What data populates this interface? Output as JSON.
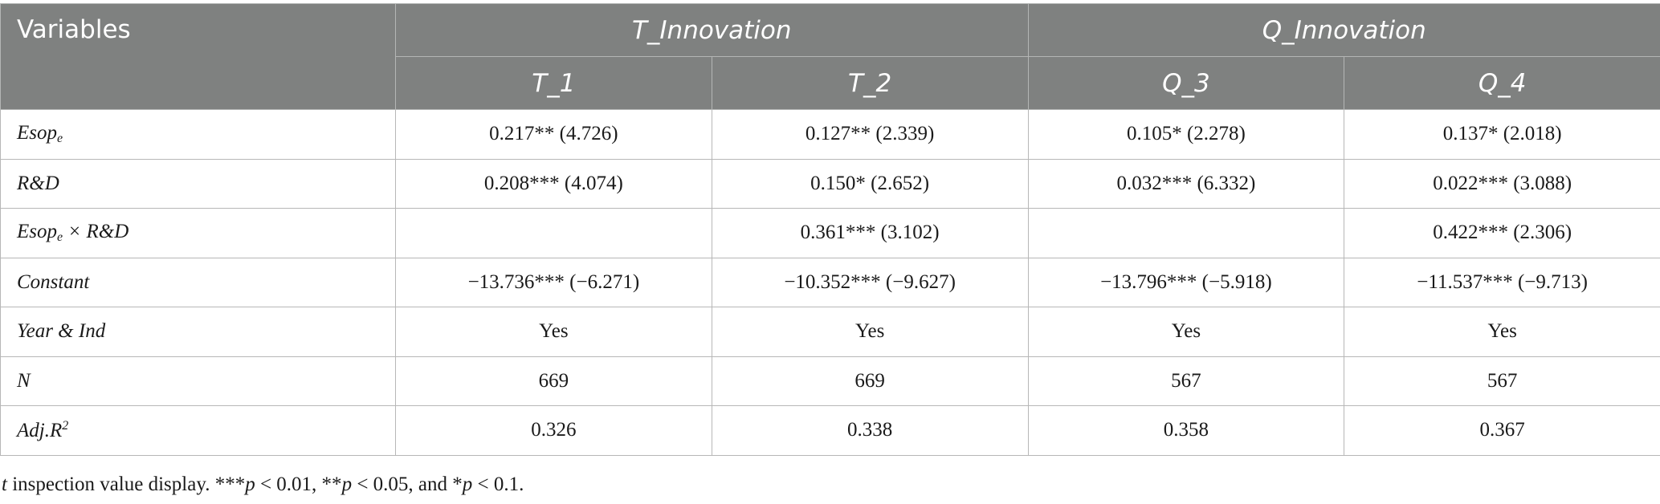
{
  "table": {
    "header": {
      "variables": "Variables",
      "groups": [
        "T_Innovation",
        "Q_Innovation"
      ],
      "columns": [
        "T_1",
        "T_2",
        "Q_3",
        "Q_4"
      ]
    },
    "rows": [
      {
        "label_main": "Esop",
        "label_sub": "e",
        "label_rest": "",
        "cells": [
          "0.217** (4.726)",
          "0.127** (2.339)",
          "0.105* (2.278)",
          "0.137* (2.018)"
        ]
      },
      {
        "label_main": "R&D",
        "label_sub": "",
        "label_rest": "",
        "cells": [
          "0.208*** (4.074)",
          "0.150* (2.652)",
          "0.032*** (6.332)",
          "0.022*** (3.088)"
        ]
      },
      {
        "label_main": "Esop",
        "label_sub": "e",
        "label_rest": " × R&D",
        "cells": [
          "",
          "0.361*** (3.102)",
          "",
          "0.422*** (2.306)"
        ]
      },
      {
        "label_main": "Constant",
        "label_sub": "",
        "label_rest": "",
        "cells": [
          "−13.736*** (−6.271)",
          "−10.352*** (−9.627)",
          "−13.796*** (−5.918)",
          "−11.537*** (−9.713)"
        ]
      },
      {
        "label_main": "Year & Ind",
        "label_sub": "",
        "label_rest": "",
        "cells": [
          "Yes",
          "Yes",
          "Yes",
          "Yes"
        ]
      },
      {
        "label_main": "N",
        "label_sub": "",
        "label_rest": "",
        "cells": [
          "669",
          "669",
          "567",
          "567"
        ]
      },
      {
        "label_main": "Adj.R",
        "label_sup": "2",
        "label_rest": "",
        "cells": [
          "0.326",
          "0.338",
          "0.358",
          "0.367"
        ]
      }
    ]
  },
  "note": {
    "t": "t",
    "part1": " inspection value display. ***",
    "p1": "p",
    "part2": " < 0.01, **",
    "p2": "p",
    "part3": " < 0.05, and *",
    "p3": "p",
    "part4": " < 0.1."
  }
}
